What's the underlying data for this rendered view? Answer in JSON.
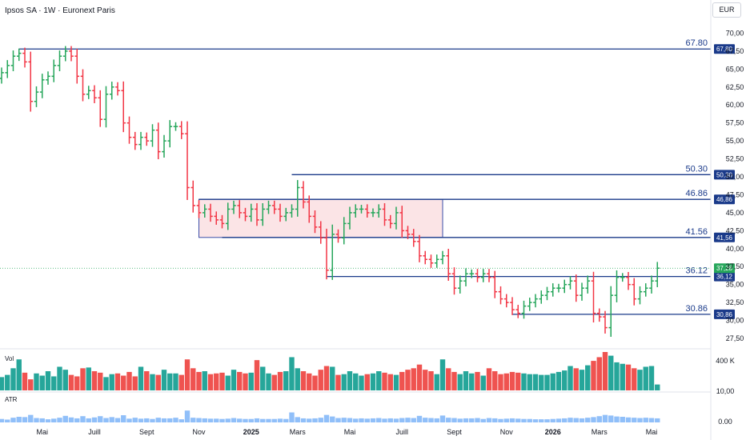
{
  "header": {
    "title": "Ipsos SA · 1W · Euronext Paris",
    "currency": "EUR"
  },
  "chart_data": [
    {
      "type": "ohlc",
      "title": "Ipsos SA · 1W · Euronext Paris",
      "y_ticks": [
        "70,00",
        "67,50",
        "65,00",
        "62,50",
        "60,00",
        "57,50",
        "55,00",
        "52,50",
        "50,00",
        "47,50",
        "45,00",
        "42,50",
        "40,00",
        "37,50",
        "35,00",
        "32,50",
        "30,00",
        "27,50"
      ],
      "ylim": [
        26.5,
        71.5
      ],
      "x_ticks": [
        "Mai",
        "Juill",
        "Sept",
        "Nov",
        "2025",
        "Mars",
        "Mai",
        "Juill",
        "Sept",
        "Nov",
        "2026",
        "Mars",
        "Mai"
      ],
      "x_tick_bold": [
        false,
        false,
        false,
        false,
        true,
        false,
        false,
        false,
        false,
        false,
        true,
        false,
        false
      ],
      "x_tick_week": [
        7,
        16,
        25,
        34,
        43,
        51,
        60,
        69,
        78,
        87,
        95,
        103,
        112
      ],
      "last_price": {
        "label": "37,28",
        "value": 37.28
      },
      "levels": [
        {
          "value": 67.8,
          "label": "67.80",
          "tag": "67,80",
          "start_week": 3
        },
        {
          "value": 50.3,
          "label": "50.30",
          "tag": "50,30",
          "start_week": 50
        },
        {
          "value": 46.86,
          "label": "46.86",
          "tag": "46,86",
          "start_week": 34
        },
        {
          "value": 41.56,
          "label": "41.56",
          "tag": "41,56",
          "start_week": 38
        },
        {
          "value": 36.12,
          "label": "36.12",
          "tag": "36,12",
          "start_week": 56
        },
        {
          "value": 30.86,
          "label": "30.86",
          "tag": "30,86",
          "start_week": 88
        }
      ],
      "range_box": {
        "week_start": 34,
        "week_end": 76,
        "high": 46.86,
        "low": 41.56,
        "fill": "#fbe4e6",
        "stroke": "#3a4ea8"
      },
      "colors": {
        "up": "#26a65b",
        "down": "#f23645",
        "level": "#1a3a8a",
        "vol_up": "#26a69a",
        "vol_down": "#ef5350",
        "atr": "#90bff9"
      },
      "close": [
        64.5,
        65.5,
        66.8,
        67.2,
        66.0,
        60.5,
        61.8,
        63.5,
        64.0,
        65.5,
        66.8,
        67.5,
        66.8,
        64.0,
        61.5,
        62.0,
        61.0,
        58.0,
        61.5,
        62.5,
        62.0,
        57.5,
        55.5,
        54.5,
        55.5,
        55.0,
        56.5,
        53.5,
        55.0,
        57.0,
        57.0,
        56.0,
        48.5,
        46.0,
        45.0,
        45.5,
        44.5,
        44.0,
        43.5,
        45.5,
        46.0,
        45.0,
        44.5,
        45.5,
        44.0,
        45.5,
        46.0,
        45.5,
        44.5,
        45.0,
        45.5,
        48.5,
        46.5,
        44.5,
        43.0,
        41.5,
        37.0,
        42.0,
        41.5,
        43.5,
        45.0,
        45.5,
        45.5,
        45.0,
        45.0,
        45.5,
        44.0,
        43.5,
        45.0,
        42.5,
        42.0,
        41.0,
        39.0,
        38.5,
        38.0,
        38.5,
        39.0,
        36.5,
        34.5,
        35.5,
        36.5,
        36.5,
        36.0,
        36.5,
        36.0,
        34.0,
        33.0,
        32.5,
        31.5,
        31.0,
        32.0,
        32.5,
        33.0,
        33.5,
        34.0,
        34.5,
        34.5,
        35.0,
        35.5,
        33.5,
        34.5,
        35.5,
        31.0,
        30.5,
        29.0,
        33.5,
        36.0,
        36.0,
        35.0,
        33.0,
        34.0,
        34.5,
        35.5,
        37.28
      ],
      "volume_pane": {
        "label": "Vol",
        "tick": "400 K",
        "tick_value": 400000,
        "max": 520000
      },
      "volume": [
        180000,
        210000,
        300000,
        420000,
        240000,
        150000,
        230000,
        200000,
        260000,
        190000,
        320000,
        280000,
        210000,
        190000,
        300000,
        310000,
        260000,
        240000,
        180000,
        220000,
        230000,
        200000,
        250000,
        190000,
        320000,
        260000,
        220000,
        210000,
        280000,
        230000,
        230000,
        210000,
        420000,
        300000,
        250000,
        260000,
        220000,
        230000,
        240000,
        200000,
        280000,
        250000,
        230000,
        240000,
        410000,
        320000,
        230000,
        210000,
        250000,
        260000,
        450000,
        300000,
        260000,
        230000,
        200000,
        280000,
        330000,
        320000,
        210000,
        220000,
        260000,
        230000,
        200000,
        220000,
        230000,
        260000,
        240000,
        220000,
        210000,
        250000,
        280000,
        300000,
        350000,
        280000,
        260000,
        220000,
        420000,
        300000,
        250000,
        220000,
        260000,
        230000,
        250000,
        200000,
        300000,
        260000,
        220000,
        230000,
        250000,
        240000,
        230000,
        220000,
        220000,
        210000,
        210000,
        230000,
        250000,
        270000,
        330000,
        300000,
        280000,
        340000,
        400000,
        450000,
        520000,
        470000,
        380000,
        360000,
        350000,
        300000,
        280000,
        320000,
        330000,
        80000
      ],
      "atr_pane": {
        "label": "ATR",
        "tick_top": "10,00",
        "tick_bottom": "0.00",
        "max": 10.0
      },
      "atr": [
        1.1,
        0.9,
        1.5,
        1.8,
        1.7,
        2.4,
        1.4,
        1.3,
        1.0,
        1.2,
        1.5,
        2.1,
        1.6,
        1.3,
        2.0,
        1.3,
        1.6,
        2.0,
        1.4,
        1.7,
        1.4,
        2.3,
        1.2,
        1.5,
        1.2,
        1.3,
        1.1,
        1.5,
        1.3,
        1.3,
        1.5,
        1.0,
        3.8,
        1.5,
        1.4,
        1.3,
        1.2,
        1.2,
        1.1,
        1.2,
        1.4,
        1.2,
        1.1,
        1.1,
        1.3,
        1.1,
        1.1,
        1.1,
        1.2,
        1.1,
        3.2,
        1.7,
        1.3,
        1.2,
        1.3,
        1.5,
        2.4,
        1.9,
        1.4,
        1.5,
        1.4,
        1.2,
        1.3,
        1.2,
        1.3,
        1.4,
        1.2,
        1.3,
        1.2,
        1.4,
        1.5,
        1.4,
        2.1,
        1.5,
        1.4,
        1.3,
        2.2,
        1.5,
        1.4,
        1.2,
        1.3,
        1.3,
        1.4,
        1.1,
        1.4,
        1.3,
        1.1,
        1.2,
        1.3,
        1.2,
        1.1,
        1.1,
        1.0,
        1.0,
        1.0,
        1.1,
        1.2,
        1.3,
        1.5,
        1.4,
        1.3,
        1.5,
        1.7,
        2.0,
        2.4,
        2.2,
        1.9,
        1.8,
        1.6,
        1.5,
        1.4,
        1.5,
        1.4,
        1.3
      ]
    }
  ]
}
